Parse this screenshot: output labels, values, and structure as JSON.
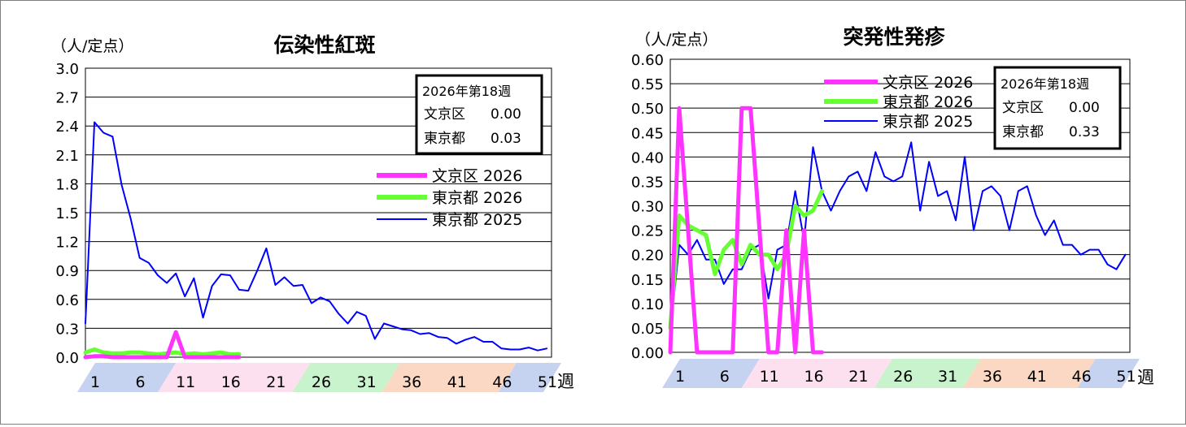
{
  "chart_data": [
    {
      "type": "line",
      "title": "伝染性紅斑",
      "ylabel": "（人/定点）",
      "xlabel": "週",
      "ylim": [
        0,
        3.0
      ],
      "yticks": [
        "0.0",
        "0.3",
        "0.6",
        "0.9",
        "1.2",
        "1.5",
        "1.8",
        "2.1",
        "2.4",
        "2.7",
        "3.0"
      ],
      "xticks": [
        "1",
        "6",
        "11",
        "16",
        "21",
        "26",
        "31",
        "36",
        "41",
        "46",
        "51"
      ],
      "grid": true,
      "legend_position": "right",
      "infobox": {
        "title": "2026年第18週",
        "rows": [
          {
            "label": "文京区",
            "value": "0.00"
          },
          {
            "label": "東京都",
            "value": "0.03"
          }
        ]
      },
      "series": [
        {
          "name": "文京区 2026",
          "color": "#ff33ff",
          "values": [
            0.0,
            0.01,
            0.01,
            0.0,
            0.0,
            0.0,
            0.0,
            0.0,
            0.0,
            0.0,
            0.26,
            0.0,
            0.0,
            0.0,
            0.0,
            0.0,
            0.0,
            0.0
          ]
        },
        {
          "name": "東京都 2026",
          "color": "#66ff33",
          "values": [
            0.05,
            0.08,
            0.05,
            0.04,
            0.04,
            0.05,
            0.05,
            0.04,
            0.03,
            0.04,
            0.05,
            0.03,
            0.04,
            0.03,
            0.04,
            0.05,
            0.03,
            0.03
          ]
        },
        {
          "name": "東京都 2025",
          "color": "#0000ff",
          "values": [
            0.35,
            2.44,
            2.33,
            2.29,
            1.79,
            1.44,
            1.03,
            0.98,
            0.85,
            0.77,
            0.87,
            0.63,
            0.82,
            0.41,
            0.74,
            0.86,
            0.85,
            0.7,
            0.69,
            0.9,
            1.13,
            0.75,
            0.83,
            0.74,
            0.75,
            0.56,
            0.62,
            0.58,
            0.45,
            0.35,
            0.47,
            0.43,
            0.19,
            0.35,
            0.32,
            0.29,
            0.28,
            0.24,
            0.25,
            0.21,
            0.2,
            0.14,
            0.18,
            0.21,
            0.16,
            0.16,
            0.09,
            0.08,
            0.08,
            0.1,
            0.07,
            0.09
          ]
        }
      ]
    },
    {
      "type": "line",
      "title": "突発性発疹",
      "ylabel": "（人/定点）",
      "xlabel": "週",
      "ylim": [
        0,
        0.6
      ],
      "yticks": [
        "0.00",
        "0.05",
        "0.10",
        "0.15",
        "0.20",
        "0.25",
        "0.30",
        "0.35",
        "0.40",
        "0.45",
        "0.50",
        "0.55",
        "0.60"
      ],
      "xticks": [
        "1",
        "6",
        "11",
        "16",
        "21",
        "26",
        "31",
        "36",
        "41",
        "46",
        "51"
      ],
      "grid": true,
      "legend_position": "top-center",
      "infobox": {
        "title": "2026年第18週",
        "rows": [
          {
            "label": "文京区",
            "value": "0.00"
          },
          {
            "label": "東京都",
            "value": "0.33"
          }
        ]
      },
      "series": [
        {
          "name": "文京区 2026",
          "color": "#ff33ff",
          "values": [
            0.0,
            0.5,
            0.25,
            0.0,
            0.0,
            0.0,
            0.0,
            0.0,
            0.5,
            0.5,
            0.25,
            0.0,
            0.0,
            0.25,
            0.0,
            0.25,
            0.0,
            0.0
          ]
        },
        {
          "name": "東京都 2026",
          "color": "#66ff33",
          "values": [
            0.05,
            0.28,
            0.26,
            0.25,
            0.24,
            0.16,
            0.21,
            0.23,
            0.18,
            0.22,
            0.2,
            0.2,
            0.17,
            0.2,
            0.3,
            0.28,
            0.29,
            0.33
          ]
        },
        {
          "name": "東京都 2025",
          "color": "#0000ff",
          "values": [
            0.04,
            0.22,
            0.2,
            0.23,
            0.19,
            0.19,
            0.14,
            0.17,
            0.17,
            0.21,
            0.22,
            0.11,
            0.21,
            0.22,
            0.33,
            0.23,
            0.42,
            0.33,
            0.29,
            0.33,
            0.36,
            0.37,
            0.33,
            0.41,
            0.36,
            0.35,
            0.36,
            0.43,
            0.29,
            0.39,
            0.32,
            0.33,
            0.27,
            0.4,
            0.25,
            0.33,
            0.34,
            0.32,
            0.25,
            0.33,
            0.34,
            0.28,
            0.24,
            0.27,
            0.22,
            0.22,
            0.2,
            0.21,
            0.21,
            0.18,
            0.17,
            0.2
          ]
        }
      ]
    }
  ]
}
